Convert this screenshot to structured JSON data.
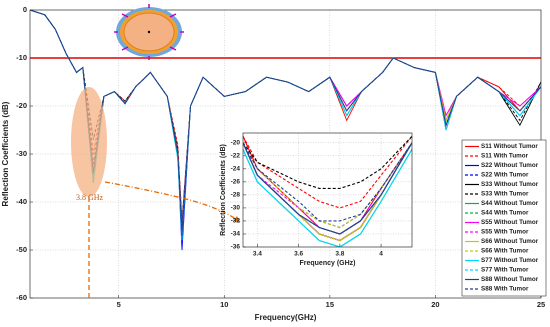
{
  "chart_data": [
    {
      "type": "line",
      "x_label": "Frequency(GHz)",
      "y_label": "Reflection Coefficients (dB)",
      "annotation": "3.8 GHz",
      "threshold": -10,
      "threshold_color": "#e00000",
      "xlim": [
        0.8,
        25
      ],
      "ylim": [
        -60,
        0
      ],
      "xticks": [
        5,
        10,
        15,
        20,
        25
      ],
      "yticks": [
        0,
        -10,
        -20,
        -30,
        -40,
        -50,
        -60
      ],
      "grid": true,
      "legend": "right",
      "x": [
        0.8,
        1.5,
        2,
        2.5,
        3,
        3.3,
        3.8,
        4.3,
        4.8,
        5.3,
        5.8,
        6.5,
        7.3,
        7.8,
        8,
        8.4,
        9,
        10,
        11,
        12,
        13,
        14,
        15,
        15.8,
        16.5,
        17.5,
        18,
        19,
        20,
        20.5,
        21,
        22,
        23,
        24,
        25
      ],
      "series": [
        {
          "name": "S11 Without Tumor",
          "color": "#ff0000",
          "dashed": false,
          "values": [
            0,
            -1,
            -4,
            -9,
            -13,
            -12,
            -34,
            -18,
            -17,
            -19.5,
            -16,
            -13,
            -18,
            -29,
            -46,
            -20,
            -14,
            -18,
            -17,
            -14,
            -15,
            -17,
            -14,
            -23,
            -17,
            -13,
            -10,
            -12,
            -13,
            -23,
            -18,
            -14,
            -16,
            -21,
            -16
          ]
        },
        {
          "name": "S11 With Tumor",
          "color": "#ff0000",
          "dashed": true,
          "values": [
            0,
            -1,
            -4,
            -9,
            -13,
            -12,
            -30,
            -18,
            -17,
            -19,
            -16,
            -13,
            -18,
            -28,
            -44,
            -20,
            -14,
            -18,
            -17,
            -14,
            -15,
            -17,
            -14,
            -21,
            -17,
            -13,
            -10,
            -12,
            -13,
            -22,
            -18,
            -14,
            -16,
            -20,
            -16
          ]
        },
        {
          "name": "S22 Without Tumor",
          "color": "#0000ff",
          "dashed": false,
          "values": [
            0,
            -1,
            -4,
            -9,
            -13,
            -12,
            -35,
            -18,
            -17,
            -19.5,
            -16,
            -13,
            -18,
            -30,
            -50,
            -20,
            -14,
            -18,
            -17,
            -14,
            -15,
            -17,
            -14,
            -20,
            -17,
            -13,
            -10,
            -12,
            -13,
            -24,
            -18,
            -14,
            -17,
            -22,
            -16
          ]
        },
        {
          "name": "S22 With Tumor",
          "color": "#0000ff",
          "dashed": true,
          "values": [
            0,
            -1,
            -4,
            -9,
            -13,
            -12,
            -33,
            -18,
            -17,
            -19.5,
            -16,
            -13,
            -18,
            -30,
            -48,
            -20,
            -14,
            -18,
            -17,
            -14,
            -15,
            -17,
            -14,
            -20,
            -17,
            -13,
            -10,
            -12,
            -13,
            -24,
            -18,
            -14,
            -17,
            -21,
            -16
          ]
        },
        {
          "name": "S33 Without Tumor",
          "color": "#000000",
          "dashed": false,
          "values": [
            0,
            -1,
            -4,
            -9,
            -13,
            -12,
            -35,
            -18,
            -17,
            -19.5,
            -16,
            -13,
            -18,
            -30,
            -45,
            -20,
            -14,
            -18,
            -17,
            -14,
            -15,
            -17,
            -14,
            -22,
            -17,
            -13,
            -10,
            -12,
            -13,
            -25,
            -18,
            -14,
            -17,
            -24,
            -15
          ]
        },
        {
          "name": "S33 With Tumor",
          "color": "#000000",
          "dashed": true,
          "values": [
            0,
            -1,
            -4,
            -9,
            -13,
            -12,
            -27,
            -18,
            -17,
            -19,
            -16,
            -13,
            -18,
            -29,
            -44,
            -20,
            -14,
            -18,
            -17,
            -14,
            -15,
            -17,
            -14,
            -21,
            -17,
            -13,
            -10,
            -12,
            -13,
            -24,
            -18,
            -14,
            -17,
            -23,
            -15
          ]
        },
        {
          "name": "S44 Without Tumor",
          "color": "#00b050",
          "dashed": false,
          "values": [
            0,
            -1,
            -4,
            -9,
            -13,
            -12,
            -36,
            -18,
            -17,
            -19.5,
            -16,
            -13,
            -18,
            -31,
            -47,
            -20,
            -14,
            -18,
            -17,
            -14,
            -15,
            -17,
            -14,
            -21,
            -17,
            -13,
            -10,
            -12,
            -13,
            -23,
            -18,
            -14,
            -17,
            -22,
            -16
          ]
        },
        {
          "name": "S44 With Tumor",
          "color": "#00b050",
          "dashed": true,
          "values": [
            0,
            -1,
            -4,
            -9,
            -13,
            -12,
            -34,
            -18,
            -17,
            -19.5,
            -16,
            -13,
            -18,
            -30,
            -45,
            -20,
            -14,
            -18,
            -17,
            -14,
            -15,
            -17,
            -14,
            -21,
            -17,
            -13,
            -10,
            -12,
            -13,
            -23,
            -18,
            -14,
            -17,
            -21,
            -16
          ]
        },
        {
          "name": "S55 Without Tumor",
          "color": "#ff00ff",
          "dashed": false,
          "values": [
            0,
            -1,
            -4,
            -9,
            -13,
            -12,
            -35,
            -18,
            -17,
            -19.5,
            -16,
            -13,
            -18,
            -30,
            -46,
            -20,
            -14,
            -18,
            -17,
            -14,
            -15,
            -17,
            -14,
            -20,
            -17,
            -13,
            -10,
            -12,
            -13,
            -22,
            -18,
            -14,
            -17,
            -20,
            -16
          ]
        },
        {
          "name": "S55 With Tumor",
          "color": "#ff00ff",
          "dashed": true,
          "values": [
            0,
            -1,
            -4,
            -9,
            -13,
            -12,
            -34,
            -18,
            -17,
            -19.5,
            -16,
            -13,
            -18,
            -30,
            -45,
            -20,
            -14,
            -18,
            -17,
            -14,
            -15,
            -17,
            -14,
            -20,
            -17,
            -13,
            -10,
            -12,
            -13,
            -22,
            -18,
            -14,
            -17,
            -20,
            -16
          ]
        },
        {
          "name": "S66 Without Tumor",
          "color": "#c8c800",
          "dashed": false,
          "values": [
            0,
            -1,
            -4,
            -9,
            -13,
            -12,
            -35,
            -18,
            -17,
            -19.5,
            -16,
            -13,
            -18,
            -30,
            -47,
            -20,
            -14,
            -18,
            -17,
            -14,
            -15,
            -17,
            -14,
            -21,
            -17,
            -13,
            -10,
            -12,
            -13,
            -23,
            -18,
            -14,
            -17,
            -21,
            -16
          ]
        },
        {
          "name": "S66 With Tumor",
          "color": "#c8c800",
          "dashed": true,
          "values": [
            0,
            -1,
            -4,
            -9,
            -13,
            -12,
            -33,
            -18,
            -17,
            -19.5,
            -16,
            -13,
            -18,
            -30,
            -46,
            -20,
            -14,
            -18,
            -17,
            -14,
            -15,
            -17,
            -14,
            -21,
            -17,
            -13,
            -10,
            -12,
            -13,
            -23,
            -18,
            -14,
            -17,
            -21,
            -16
          ]
        },
        {
          "name": "S77 Without Tumor",
          "color": "#00d8ff",
          "dashed": false,
          "values": [
            0,
            -1,
            -4,
            -9,
            -13,
            -12,
            -36,
            -18,
            -17,
            -19.5,
            -16,
            -13,
            -18,
            -31,
            -48,
            -20,
            -14,
            -18,
            -17,
            -14,
            -15,
            -17,
            -14,
            -22,
            -17,
            -13,
            -10,
            -12,
            -13,
            -25,
            -18,
            -14,
            -17,
            -22,
            -16
          ]
        },
        {
          "name": "S77 With Tumor",
          "color": "#00d8ff",
          "dashed": true,
          "values": [
            0,
            -1,
            -4,
            -9,
            -13,
            -12,
            -34,
            -18,
            -17,
            -19.5,
            -16,
            -13,
            -18,
            -30,
            -46,
            -20,
            -14,
            -18,
            -17,
            -14,
            -15,
            -17,
            -14,
            -22,
            -17,
            -13,
            -10,
            -12,
            -13,
            -24,
            -18,
            -14,
            -17,
            -22,
            -16
          ]
        },
        {
          "name": "S88 Without Tumor",
          "color": "#1f3f8f",
          "dashed": false,
          "values": [
            0,
            -1,
            -4,
            -9,
            -13,
            -12,
            -34,
            -18,
            -17,
            -19.5,
            -16,
            -13,
            -18,
            -30,
            -47,
            -20,
            -14,
            -18,
            -17,
            -14,
            -15,
            -17,
            -14,
            -21,
            -17,
            -13,
            -10,
            -12,
            -13,
            -24,
            -18,
            -14,
            -17,
            -21,
            -16
          ]
        },
        {
          "name": "S88 With Tumor",
          "color": "#1f3f8f",
          "dashed": true,
          "values": [
            0,
            -1,
            -4,
            -9,
            -13,
            -12,
            -32,
            -18,
            -17,
            -19.5,
            -16,
            -13,
            -18,
            -30,
            -45,
            -20,
            -14,
            -18,
            -17,
            -14,
            -15,
            -17,
            -14,
            -21,
            -17,
            -13,
            -10,
            -12,
            -13,
            -24,
            -18,
            -14,
            -17,
            -21,
            -16
          ]
        }
      ]
    },
    {
      "type": "line",
      "x_label": "Frequency (GHz)",
      "y_label": "Reflection Coefficients (dB)",
      "xlim": [
        3.33,
        4.15
      ],
      "ylim": [
        -36,
        -18.5
      ],
      "xticks": [
        3.4,
        3.6,
        3.8,
        4
      ],
      "yticks": [
        -20,
        -22,
        -24,
        -26,
        -28,
        -30,
        -32,
        -34,
        -36
      ],
      "grid": true,
      "x": [
        3.33,
        3.4,
        3.6,
        3.7,
        3.8,
        3.9,
        4.0,
        4.15
      ],
      "series": [
        {
          "color": "#ff0000",
          "dashed": false,
          "values": [
            -19,
            -24,
            -30,
            -33,
            -34,
            -32,
            -27,
            -20
          ]
        },
        {
          "color": "#ff0000",
          "dashed": true,
          "values": [
            -19,
            -23,
            -27,
            -29,
            -30,
            -29,
            -25,
            -19
          ]
        },
        {
          "color": "#0000ff",
          "dashed": false,
          "values": [
            -20,
            -25,
            -31,
            -34,
            -35,
            -33,
            -28,
            -20
          ]
        },
        {
          "color": "#0000ff",
          "dashed": true,
          "values": [
            -20,
            -24,
            -30,
            -32,
            -33,
            -31,
            -27,
            -20
          ]
        },
        {
          "color": "#000000",
          "dashed": false,
          "values": [
            -20,
            -25,
            -31,
            -34,
            -35,
            -33,
            -28,
            -20
          ]
        },
        {
          "color": "#000000",
          "dashed": true,
          "values": [
            -20,
            -23,
            -26,
            -27,
            -27,
            -26,
            -24,
            -19
          ]
        },
        {
          "color": "#00b050",
          "dashed": false,
          "values": [
            -21,
            -26,
            -32,
            -35,
            -36,
            -34,
            -29,
            -21
          ]
        },
        {
          "color": "#00b050",
          "dashed": true,
          "values": [
            -20,
            -25,
            -31,
            -33,
            -34,
            -32,
            -28,
            -20
          ]
        },
        {
          "color": "#ff00ff",
          "dashed": false,
          "values": [
            -20,
            -25,
            -31,
            -34,
            -35,
            -33,
            -28,
            -20
          ]
        },
        {
          "color": "#ff00ff",
          "dashed": true,
          "values": [
            -20,
            -25,
            -30,
            -33,
            -34,
            -32,
            -27,
            -20
          ]
        },
        {
          "color": "#c8c800",
          "dashed": false,
          "values": [
            -20,
            -25,
            -31,
            -34,
            -35,
            -33,
            -28,
            -20
          ]
        },
        {
          "color": "#c8c800",
          "dashed": true,
          "values": [
            -20,
            -24,
            -30,
            -32,
            -33,
            -31,
            -27,
            -20
          ]
        },
        {
          "color": "#00d8ff",
          "dashed": false,
          "values": [
            -21,
            -26,
            -32,
            -35,
            -36,
            -34,
            -29,
            -21
          ]
        },
        {
          "color": "#00d8ff",
          "dashed": true,
          "values": [
            -20,
            -25,
            -31,
            -33,
            -34,
            -32,
            -28,
            -20
          ]
        },
        {
          "color": "#1f3f8f",
          "dashed": false,
          "values": [
            -20,
            -25,
            -31,
            -33,
            -34,
            -32,
            -28,
            -20
          ]
        },
        {
          "color": "#1f3f8f",
          "dashed": true,
          "values": [
            -20,
            -24,
            -29,
            -32,
            -32,
            -31,
            -27,
            -20
          ]
        }
      ]
    }
  ]
}
